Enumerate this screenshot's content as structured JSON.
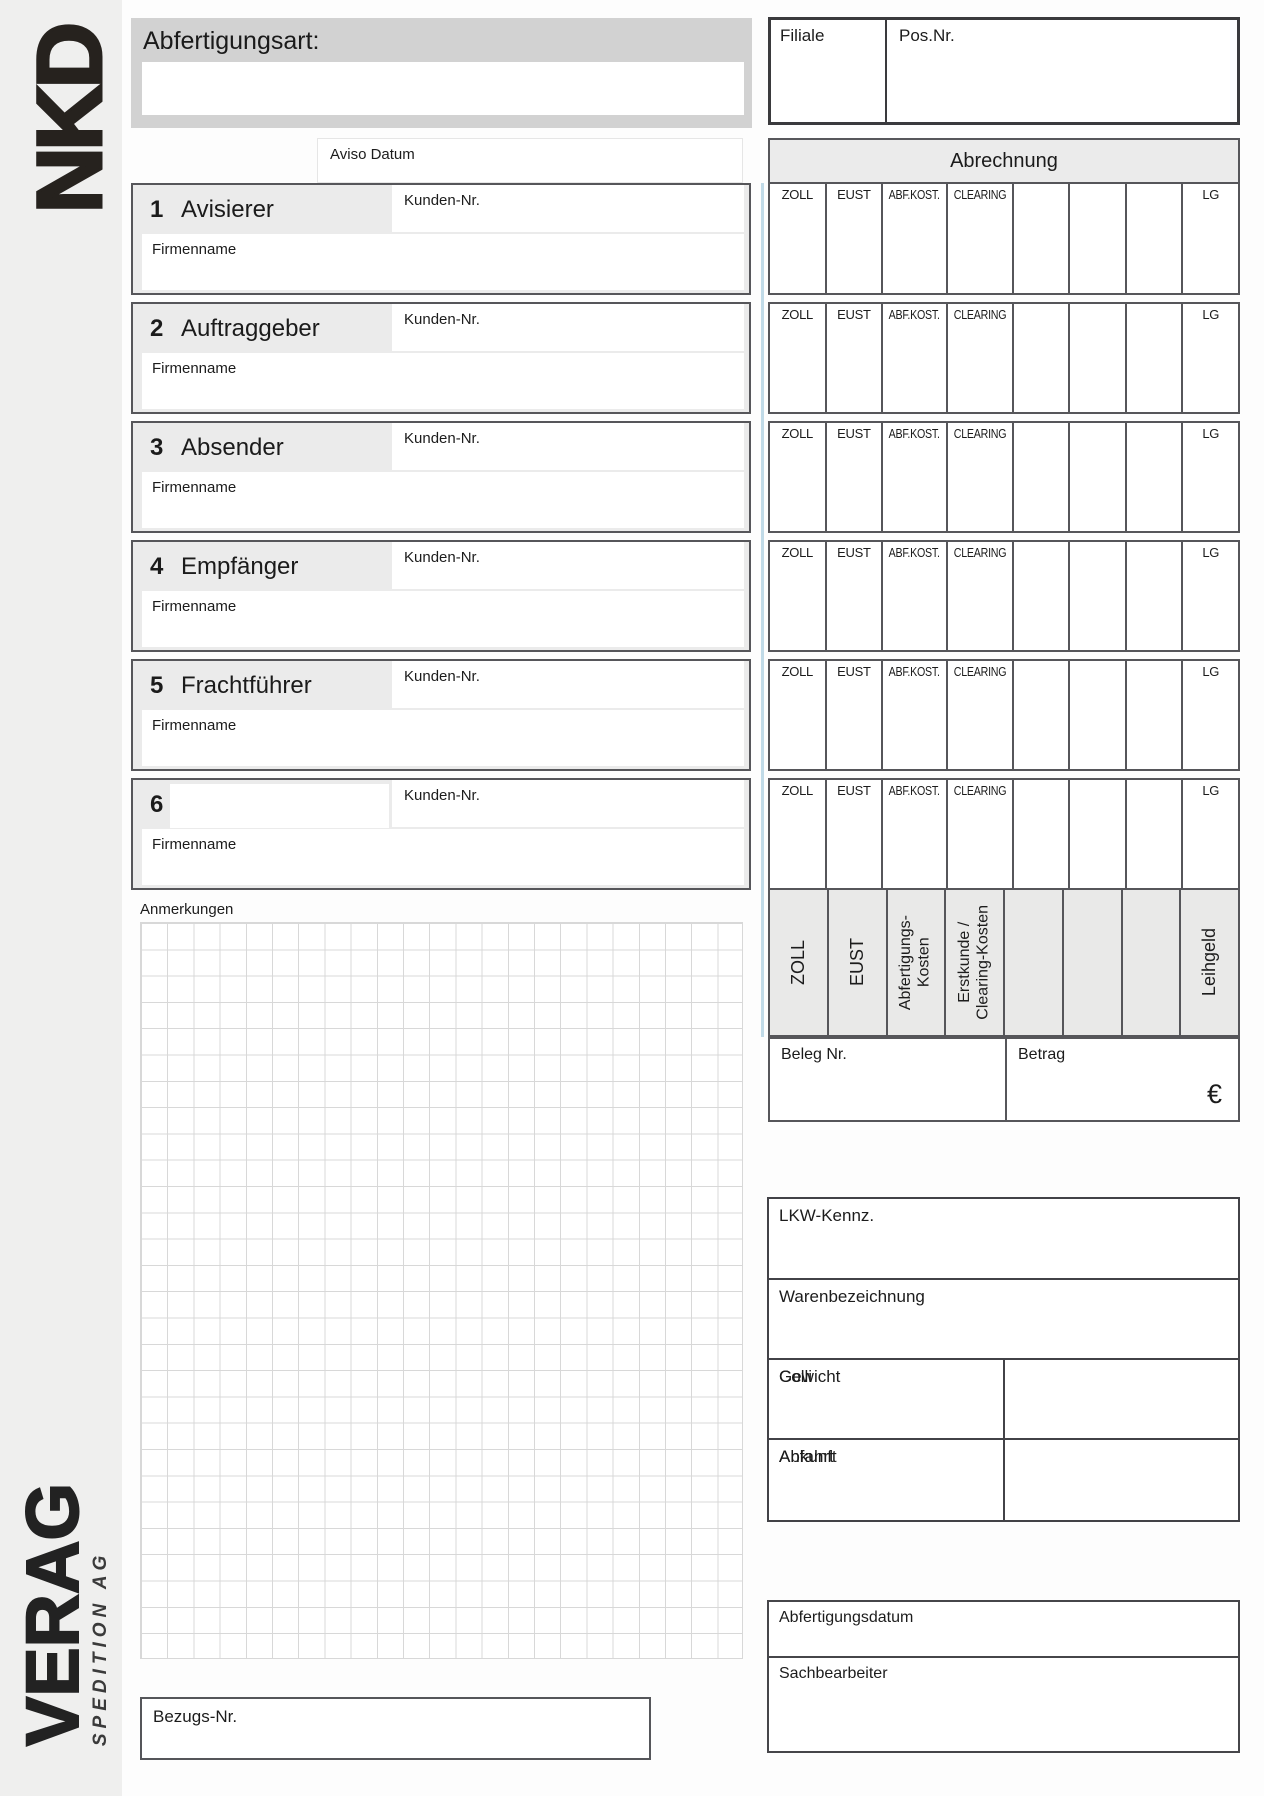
{
  "branding": {
    "logo_main": "NKD",
    "logo_secondary": "VERAG",
    "logo_tagline": "SPEDITION AG"
  },
  "header": {
    "abfertigungsart_label": "Abfertigungsart:",
    "filiale_label": "Filiale",
    "pos_nr_label": "Pos.Nr.",
    "aviso_datum_label": "Aviso Datum"
  },
  "abrechnung": {
    "title": "Abrechnung",
    "columns": [
      "ZOLL",
      "EUST",
      "ABF.KOST.",
      "CLEARING",
      "",
      "",
      "",
      "LG"
    ],
    "vertical_labels": [
      "ZOLL",
      "EUST",
      "Abfertigungs-\nKosten",
      "Erstkunde /\nClearing-Kosten",
      "",
      "",
      "",
      "Leihgeld"
    ],
    "beleg_label": "Beleg Nr.",
    "betrag_label": "Betrag",
    "currency_symbol": "€"
  },
  "sections": [
    {
      "number": "1",
      "label": "Avisierer"
    },
    {
      "number": "2",
      "label": "Auftraggeber"
    },
    {
      "number": "3",
      "label": "Absender"
    },
    {
      "number": "4",
      "label": "Empfänger"
    },
    {
      "number": "5",
      "label": "Frachtführer"
    },
    {
      "number": "6",
      "label": ""
    }
  ],
  "section_labels": {
    "kunden_nr": "Kunden-Nr.",
    "firmenname": "Firmenname"
  },
  "anmerkungen_label": "Anmerkungen",
  "shipment": {
    "lkw_label": "LKW-Kennz.",
    "waren_label": "Warenbezeichnung",
    "colli_label": "Colli",
    "gewicht_label": "Gewicht",
    "ankunft_label": "Ankunft",
    "abfahrt_label": "Abfahrt"
  },
  "processing": {
    "datum_label": "Abfertigungsdatum",
    "sachbearbeiter_label": "Sachbearbeiter"
  },
  "bezugs_label": "Bezugs-Nr.",
  "colors": {
    "header_gray": "#d2d2d2",
    "panel_gray": "#ebebeb",
    "border_dark": "#56565a",
    "accent_blue": "#b5d4e3"
  }
}
